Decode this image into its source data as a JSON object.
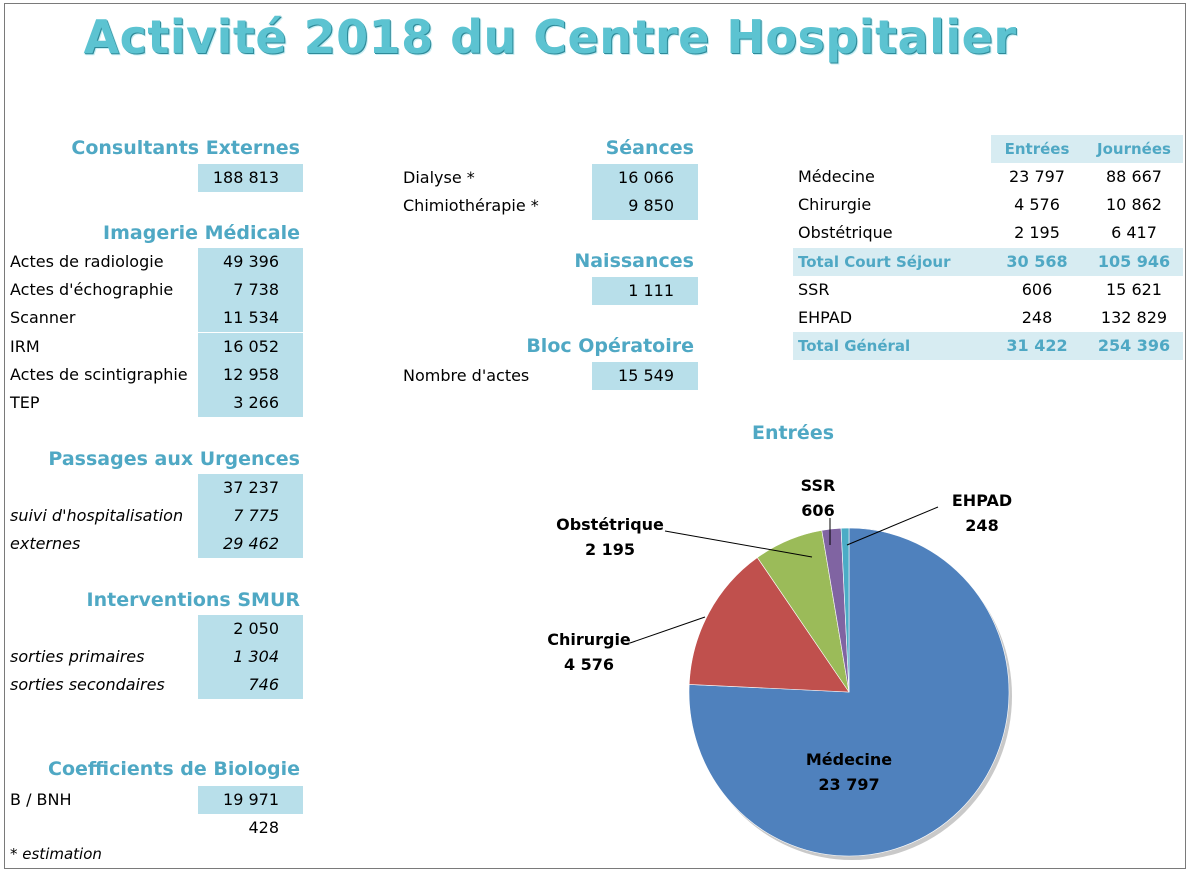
{
  "title": "Activité 2018 du Centre Hospitalier",
  "consultants": {
    "header": "Consultants Externes",
    "value": "188 813"
  },
  "imagerie": {
    "header": "Imagerie Médicale",
    "rows": [
      {
        "label": "Actes de radiologie",
        "value": "49 396"
      },
      {
        "label": "Actes d'échographie",
        "value": "7 738"
      },
      {
        "label": "Scanner",
        "value": "11 534"
      },
      {
        "label": "IRM",
        "value": "16 052"
      },
      {
        "label": "Actes de scintigraphie",
        "value": "12 958"
      },
      {
        "label": "TEP",
        "value": "3 266"
      }
    ]
  },
  "urgences": {
    "header": "Passages aux Urgences",
    "total": "37 237",
    "rows": [
      {
        "label": "suivi d'hospitalisation",
        "value": "7 775"
      },
      {
        "label": "externes",
        "value": "29 462"
      }
    ]
  },
  "smur": {
    "header": "Interventions SMUR",
    "total": "2 050",
    "rows": [
      {
        "label": "sorties primaires",
        "value": "1 304"
      },
      {
        "label": "sorties secondaires",
        "value": "746"
      }
    ]
  },
  "biologie": {
    "header": "Coefficients de Biologie",
    "label": "B / BNH",
    "value": "19 971 428"
  },
  "footnote": "* estimation",
  "seances": {
    "header": "Séances",
    "rows": [
      {
        "label": "Dialyse *",
        "value": "16 066"
      },
      {
        "label": "Chimiothérapie *",
        "value": "9 850"
      }
    ]
  },
  "naissances": {
    "header": "Naissances",
    "value": "1 111"
  },
  "bloc": {
    "header": "Bloc Opératoire",
    "label": "Nombre d'actes",
    "value": "15 549"
  },
  "sejours": {
    "columns": [
      "Entrées",
      "Journées"
    ],
    "rows": [
      {
        "label": "Médecine",
        "entrees": "23 797",
        "journees": "88 667",
        "total": false
      },
      {
        "label": "Chirurgie",
        "entrees": "4 576",
        "journees": "10 862",
        "total": false
      },
      {
        "label": "Obstétrique",
        "entrees": "2 195",
        "journees": "6 417",
        "total": false
      },
      {
        "label": "Total Court Séjour",
        "entrees": "30 568",
        "journees": "105 946",
        "total": true
      },
      {
        "label": "SSR",
        "entrees": "606",
        "journees": "15 621",
        "total": false
      },
      {
        "label": "EHPAD",
        "entrees": "248",
        "journees": "132 829",
        "total": false
      },
      {
        "label": "Total Général",
        "entrees": "31 422",
        "journees": "254 396",
        "total": true
      }
    ]
  },
  "colors": {
    "accent": "#4fa8c4",
    "cell_bg": "#b8dfea",
    "title": "#5cc3d1"
  },
  "chart_data": {
    "type": "pie",
    "title": "Entrées",
    "categories": [
      "Médecine",
      "Chirurgie",
      "Obstétrique",
      "SSR",
      "EHPAD"
    ],
    "values": [
      23797,
      4576,
      2195,
      606,
      248
    ],
    "value_labels": [
      "23 797",
      "4 576",
      "2 195",
      "606",
      "248"
    ],
    "colors": [
      "#4f81bd",
      "#c0504d",
      "#9bbb59",
      "#8064a2",
      "#4bacc6"
    ],
    "legend": "none"
  }
}
